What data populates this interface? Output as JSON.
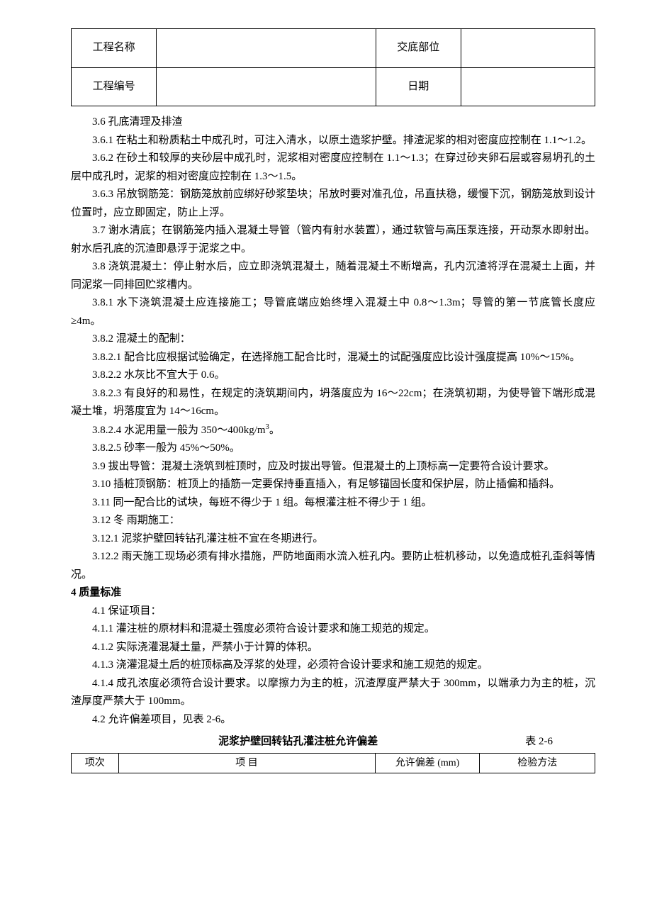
{
  "header": {
    "row1_label1": "工程名称",
    "row1_val1": "",
    "row1_label2": "交底部位",
    "row1_val2": "",
    "row2_label1": "工程编号",
    "row2_val1": "",
    "row2_label2": "日期",
    "row2_val2": ""
  },
  "paragraphs": {
    "p36": "3.6  孔底清理及排渣",
    "p361": "3.6.1  在粘土和粉质粘土中成孔时，可注入清水，以原土造浆护壁。排渣泥浆的相对密度应控制在 1.1～1.2。",
    "p362": "3.6.2  在砂土和较厚的夹砂层中成孔时，泥浆相对密度应控制在 1.1～1.3；在穿过砂夹卵石层或容易坍孔的土层中成孔时，泥浆的相对密度应控制在 1.3～1.5。",
    "p363": "3.6.3  吊放钢筋笼：钢筋笼放前应绑好砂浆垫块；吊放时要对准孔位，吊直扶稳，缓慢下沉，钢筋笼放到设计位置时，应立即固定，防止上浮。",
    "p37": "3.7  谢水清底；在钢筋笼内插入混凝土导管（管内有射水装置），通过软管与高压泵连接，开动泵水即射出。射水后孔底的沉渣即悬浮于泥浆之中。",
    "p38": "3.8  浇筑混凝土：停止射水后，应立即浇筑混凝土，随着混凝土不断增高，孔内沉渣将浮在混凝土上面，并同泥浆一同排回贮浆槽内。",
    "p381": "3.8.1  水下浇筑混凝土应连接施工；导管底端应始终埋入混凝土中 0.8～1.3m；导管的第一节底管长度应≥4m。",
    "p382": "3.8.2  混凝土的配制：",
    "p3821": "3.8.2.1  配合比应根据试验确定，在选择施工配合比时，混凝土的试配强度应比设计强度提高 10%～15%。",
    "p3822": "3.8.2.2  水灰比不宜大于 0.6。",
    "p3823": "3.8.2.3  有良好的和易性，在规定的浇筑期间内，坍落度应为 16～22cm；在浇筑初期，为使导管下端形成混凝土堆，坍落度宜为 14～16cm。",
    "p3824_a": "3.8.2.4  水泥用量一般为 350～400kg/m",
    "p3824_b": "。",
    "p3825": "3.8.2.5  砂率一般为 45%～50%。",
    "p39": "3.9  拔出导管：混凝土浇筑到桩顶时，应及时拔出导管。但混凝土的上顶标高一定要符合设计要求。",
    "p310": "3.10  插桩顶钢筋：桩顶上的插筋一定要保持垂直插入，有足够锚固长度和保护层，防止插偏和插斜。",
    "p311": "3.11  同一配合比的试块，每班不得少于 1 组。每根灌注桩不得少于 1 组。",
    "p312": "3.12  冬  雨期施工：",
    "p3121": "3.12.1  泥浆护壁回转钻孔灌注桩不宜在冬期进行。",
    "p3122": "3.12.2  雨天施工现场必须有排水措施，严防地面雨水流入桩孔内。要防止桩机移动，以免造成桩孔歪斜等情况。",
    "p4": "4  质量标准",
    "p41": "4.1  保证项目：",
    "p411": "4.1.1  灌注桩的原材料和混凝土强度必须符合设计要求和施工规范的规定。",
    "p412": "4.1.2  实际浇灌混凝土量，严禁小于计算的体积。",
    "p413": "4.1.3  浇灌混凝土后的桩顶标高及浮浆的处理，必须符合设计要求和施工规范的规定。",
    "p414": "4.1.4  成孔浓度必须符合设计要求。以摩擦力为主的桩，沉渣厚度严禁大于 300mm，以端承力为主的桩，沉渣厚度严禁大于 100mm。",
    "p42": "4.2  允许偏差项目，见表 2-6。"
  },
  "deviation": {
    "title_main": "泥浆护壁回转钻孔灌注桩允许偏差",
    "title_right": "表 2-6",
    "headers": {
      "c1": "项次",
      "c2": "项        目",
      "c3": "允许偏差 (mm)",
      "c4": "检验方法"
    }
  }
}
